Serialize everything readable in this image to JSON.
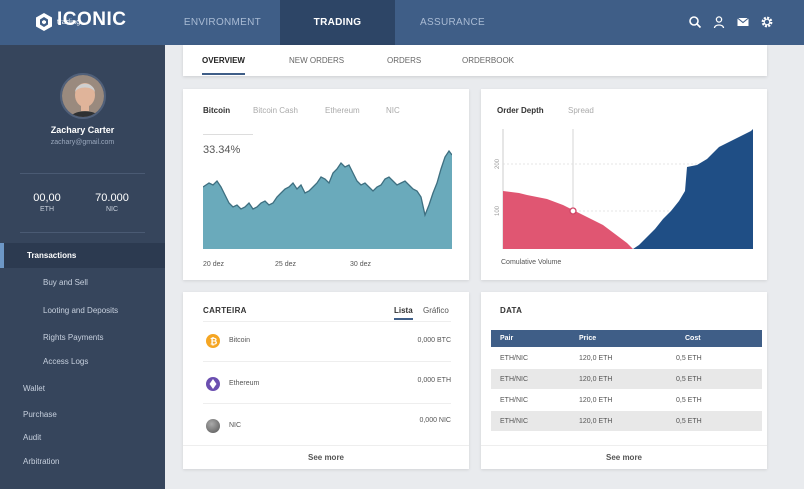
{
  "header": {
    "logo_text": "ICONIC",
    "logo_sub": "trading",
    "tabs": [
      {
        "label": "ENVIRONMENT",
        "active": false
      },
      {
        "label": "TRADING",
        "active": true
      },
      {
        "label": "ASSURANCE",
        "active": false
      }
    ],
    "icons": [
      "search-icon",
      "user-icon",
      "mail-icon",
      "settings-icon"
    ]
  },
  "sidebar": {
    "user": {
      "name": "Zachary Carter",
      "email": "zachary@gmail.com"
    },
    "balances": [
      {
        "value": "00,00",
        "currency": "ETH"
      },
      {
        "value": "70.000",
        "currency": "NIC"
      }
    ],
    "nav": [
      {
        "label": "Transactions",
        "active": true
      },
      {
        "label": "Buy and Sell"
      },
      {
        "label": "Looting and Deposits"
      },
      {
        "label": "Rights Payments"
      },
      {
        "label": "Access Logs"
      },
      {
        "label": "Wallet"
      },
      {
        "label": "Purchase"
      },
      {
        "label": "Audit"
      },
      {
        "label": "Arbitration"
      }
    ]
  },
  "subtabs": [
    "OVERVIEW",
    "NEW ORDERS",
    "ORDERS",
    "ORDERBOOK"
  ],
  "price_card": {
    "tabs": [
      "Bitcoin",
      "Bitcoin Cash",
      "Ethereum",
      "NIC"
    ],
    "percentage": "33.34%",
    "x_labels": [
      "20 dez",
      "25 dez",
      "30 dez"
    ]
  },
  "depth_card": {
    "tabs": [
      "Order Depth",
      "Spread"
    ],
    "y_ticks": [
      "200",
      "100"
    ],
    "xlabel": "Comulative Volume"
  },
  "wallet_card": {
    "title": "CARTEIRA",
    "view_tabs": [
      "Lista",
      "Gráfico"
    ],
    "rows": [
      {
        "name": "Bitcoin",
        "amount": "0,000 BTC",
        "icon": "bitcoin-icon",
        "color": "#f5a623"
      },
      {
        "name": "Ethereum",
        "amount": "0,000 ETH",
        "icon": "ethereum-icon",
        "color": "#6b4fb0"
      },
      {
        "name": "NIC",
        "amount": "0,000 NIC",
        "icon": "nic-coin-icon",
        "color": "#666666"
      }
    ],
    "see_more": "See more"
  },
  "data_card": {
    "title": "DATA",
    "columns": [
      "Pair",
      "Price",
      "Cost"
    ],
    "rows": [
      [
        "ETH/NIC",
        "120,0 ETH",
        "0,5 ETH"
      ],
      [
        "ETH/NIC",
        "120,0 ETH",
        "0,5 ETH"
      ],
      [
        "ETH/NIC",
        "120,0 ETH",
        "0,5 ETH"
      ],
      [
        "ETH/NIC",
        "120,0 ETH",
        "0,5 ETH"
      ]
    ],
    "see_more": "See more"
  },
  "colors": {
    "header_bg": "#3f5e87",
    "header_active": "#2d4566",
    "sidebar_bg": "#36455c",
    "area_fill": "#6aaabb",
    "bid_color": "#e05672",
    "ask_color": "#1f4e85"
  }
}
